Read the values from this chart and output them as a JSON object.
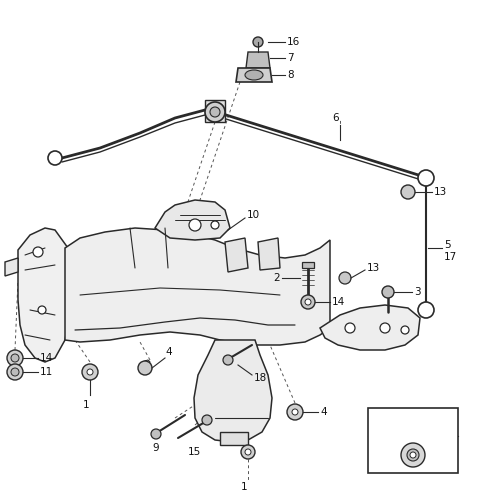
{
  "bg_color": "#ffffff",
  "lc": "#2a2a2a",
  "dc": "#555555",
  "figsize": [
    4.8,
    4.95
  ],
  "dpi": 100,
  "xlim": [
    0,
    480
  ],
  "ylim": [
    0,
    495
  ]
}
